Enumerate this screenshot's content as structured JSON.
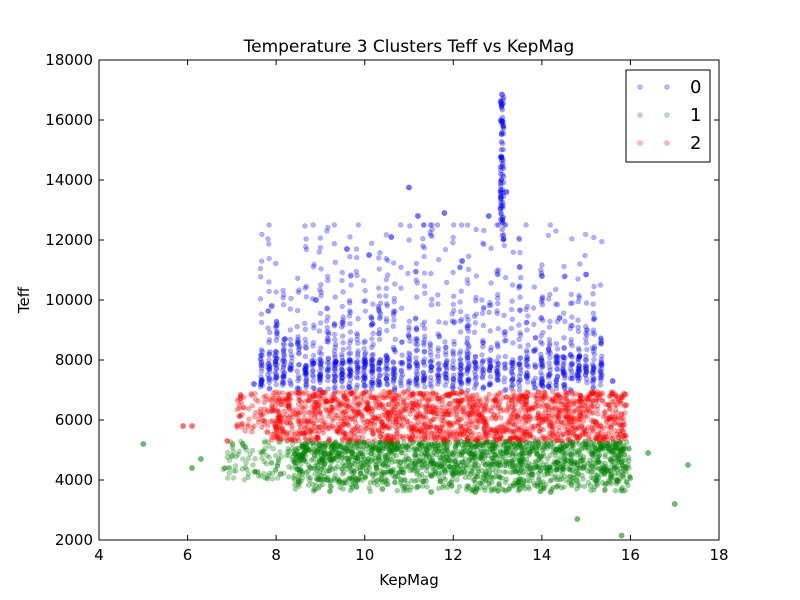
{
  "chart_data": {
    "type": "scatter",
    "title": "Temperature 3 Clusters Teff vs KepMag",
    "xlabel": "KepMag",
    "ylabel": "Teff",
    "xlim": [
      4,
      18
    ],
    "ylim": [
      2000,
      18000
    ],
    "xticks": [
      "4",
      "6",
      "8",
      "10",
      "12",
      "14",
      "16",
      "18"
    ],
    "yticks": [
      "2000",
      "4000",
      "6000",
      "8000",
      "10000",
      "12000",
      "14000",
      "16000",
      "18000"
    ],
    "grid": false,
    "legend_position": "top-right",
    "series": [
      {
        "name": "0",
        "color": "#0000ff",
        "teff_range": [
          6950,
          16850
        ],
        "kepmag_range": [
          7.2,
          15.8
        ],
        "points": [
          {
            "x": 7.5,
            "y": 7200
          },
          {
            "x": 7.9,
            "y": 9800
          },
          {
            "x": 8.2,
            "y": 8700
          },
          {
            "x": 8.9,
            "y": 10000
          },
          {
            "x": 9.6,
            "y": 11700
          },
          {
            "x": 10.1,
            "y": 11500
          },
          {
            "x": 10.6,
            "y": 12100
          },
          {
            "x": 11.0,
            "y": 13750
          },
          {
            "x": 11.2,
            "y": 12800
          },
          {
            "x": 11.8,
            "y": 12900
          },
          {
            "x": 12.2,
            "y": 11300
          },
          {
            "x": 12.8,
            "y": 12800
          },
          {
            "x": 13.1,
            "y": 16850
          },
          {
            "x": 13.2,
            "y": 13600
          },
          {
            "x": 13.5,
            "y": 11100
          },
          {
            "x": 14.0,
            "y": 10800
          },
          {
            "x": 14.4,
            "y": 9400
          },
          {
            "x": 14.8,
            "y": 7500
          },
          {
            "x": 15.0,
            "y": 10850
          },
          {
            "x": 15.6,
            "y": 7300
          }
        ]
      },
      {
        "name": "1",
        "color": "#008000",
        "teff_range": [
          2150,
          5300
        ],
        "kepmag_range": [
          5.0,
          17.3
        ],
        "points": [
          {
            "x": 5.0,
            "y": 5200
          },
          {
            "x": 6.1,
            "y": 4400
          },
          {
            "x": 6.3,
            "y": 4700
          },
          {
            "x": 7.0,
            "y": 4800
          },
          {
            "x": 8.1,
            "y": 4200
          },
          {
            "x": 9.5,
            "y": 3900
          },
          {
            "x": 10.4,
            "y": 3700
          },
          {
            "x": 11.5,
            "y": 3600
          },
          {
            "x": 12.5,
            "y": 3600
          },
          {
            "x": 13.5,
            "y": 3700
          },
          {
            "x": 14.2,
            "y": 3600
          },
          {
            "x": 14.8,
            "y": 2700
          },
          {
            "x": 15.8,
            "y": 2150
          },
          {
            "x": 16.4,
            "y": 4900
          },
          {
            "x": 17.0,
            "y": 3200
          },
          {
            "x": 17.3,
            "y": 4500
          }
        ]
      },
      {
        "name": "2",
        "color": "#ff0000",
        "teff_range": [
          5300,
          6950
        ],
        "kepmag_range": [
          5.8,
          15.9
        ],
        "points": [
          {
            "x": 5.9,
            "y": 5800
          },
          {
            "x": 6.1,
            "y": 5800
          },
          {
            "x": 6.9,
            "y": 5300
          },
          {
            "x": 7.2,
            "y": 6800
          },
          {
            "x": 7.8,
            "y": 5600
          },
          {
            "x": 8.5,
            "y": 6900
          },
          {
            "x": 10.0,
            "y": 6900
          },
          {
            "x": 12.0,
            "y": 6900
          },
          {
            "x": 14.0,
            "y": 6800
          },
          {
            "x": 15.0,
            "y": 6300
          },
          {
            "x": 15.9,
            "y": 6500
          }
        ]
      }
    ]
  }
}
